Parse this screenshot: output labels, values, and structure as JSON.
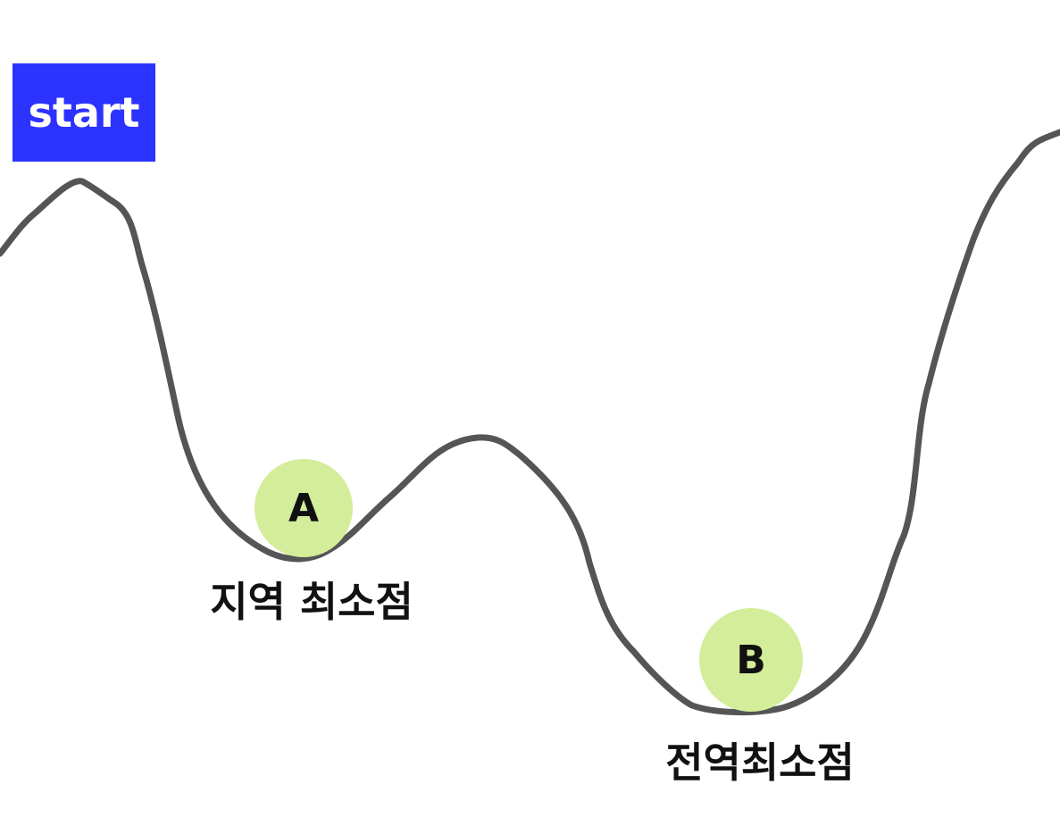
{
  "start": {
    "label": "start"
  },
  "points": [
    {
      "id": "A",
      "label": "A",
      "caption": "지역 최소점"
    },
    {
      "id": "B",
      "label": "B",
      "caption": "전역최소점"
    }
  ],
  "colors": {
    "start_bg": "#2d33ff",
    "curve": "#555555",
    "ball": "#d4ed9a",
    "text": "#111111"
  }
}
